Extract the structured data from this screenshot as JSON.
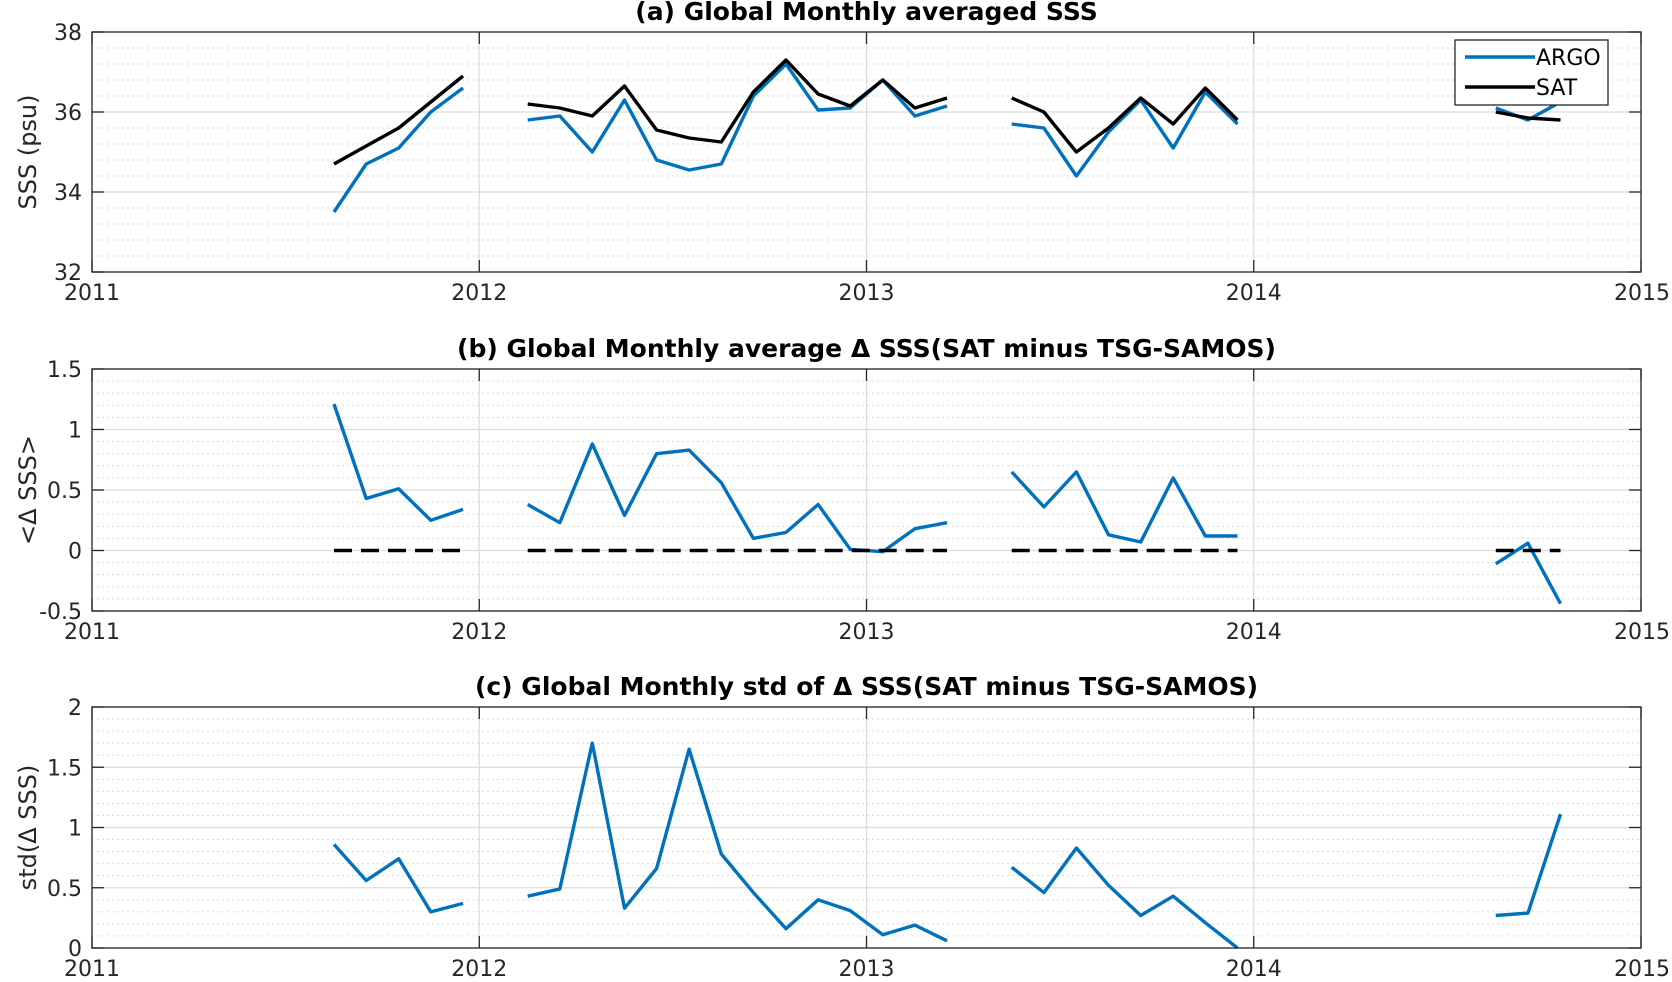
{
  "colors": {
    "argo": "#0072BD",
    "sat": "#000000",
    "zero": "#000000"
  },
  "chart_data": [
    {
      "type": "line",
      "title": "(a) Global Monthly averaged SSS",
      "xlabel": "",
      "ylabel": "SSS (psu)",
      "xlim": [
        2011,
        2015
      ],
      "ylim": [
        32,
        38
      ],
      "xticks": [
        "2011",
        "2012",
        "2013",
        "2014",
        "2015"
      ],
      "yticks": [
        "32",
        "34",
        "36",
        "38"
      ],
      "grid": true,
      "legend": "top-right",
      "series": [
        {
          "name": "ARGO",
          "color": "#0072BD",
          "segments": [
            {
              "x": [
                2011.625,
                2011.708,
                2011.792,
                2011.875,
                2011.958
              ],
              "y": [
                33.5,
                34.7,
                35.1,
                36.0,
                36.6
              ]
            },
            {
              "x": [
                2012.125,
                2012.208,
                2012.292,
                2012.375,
                2012.458,
                2012.542,
                2012.625,
                2012.708,
                2012.792,
                2012.875,
                2012.958,
                2013.042,
                2013.125,
                2013.208
              ],
              "y": [
                35.8,
                35.9,
                35.0,
                36.3,
                34.8,
                34.55,
                34.7,
                36.4,
                37.2,
                36.05,
                36.1,
                36.8,
                35.9,
                36.15
              ]
            },
            {
              "x": [
                2013.375,
                2013.458,
                2013.542,
                2013.625,
                2013.708,
                2013.792,
                2013.875,
                2013.958
              ],
              "y": [
                35.7,
                35.6,
                34.4,
                35.5,
                36.3,
                35.1,
                36.5,
                35.7
              ]
            },
            {
              "x": [
                2014.625,
                2014.708,
                2014.792
              ],
              "y": [
                36.1,
                35.8,
                36.25
              ]
            }
          ]
        },
        {
          "name": "SAT",
          "color": "#000000",
          "segments": [
            {
              "x": [
                2011.625,
                2011.708,
                2011.792,
                2011.875,
                2011.958
              ],
              "y": [
                34.7,
                35.15,
                35.6,
                36.25,
                36.9
              ]
            },
            {
              "x": [
                2012.125,
                2012.208,
                2012.292,
                2012.375,
                2012.458,
                2012.542,
                2012.625,
                2012.708,
                2012.792,
                2012.875,
                2012.958,
                2013.042,
                2013.125,
                2013.208
              ],
              "y": [
                36.2,
                36.1,
                35.9,
                36.65,
                35.55,
                35.35,
                35.25,
                36.5,
                37.3,
                36.45,
                36.15,
                36.8,
                36.1,
                36.35
              ]
            },
            {
              "x": [
                2013.375,
                2013.458,
                2013.542,
                2013.625,
                2013.708,
                2013.792,
                2013.875,
                2013.958
              ],
              "y": [
                36.35,
                36.0,
                35.0,
                35.6,
                36.35,
                35.7,
                36.6,
                35.8
              ]
            },
            {
              "x": [
                2014.625,
                2014.708,
                2014.792
              ],
              "y": [
                36.0,
                35.85,
                35.8
              ]
            }
          ]
        }
      ]
    },
    {
      "type": "line",
      "title": "(b) Global Monthly average Δ SSS(SAT minus TSG-SAMOS)",
      "xlabel": "",
      "ylabel": "<Δ SSS>",
      "xlim": [
        2011,
        2015
      ],
      "ylim": [
        -0.5,
        1.5
      ],
      "xticks": [
        "2011",
        "2012",
        "2013",
        "2014",
        "2015"
      ],
      "yticks": [
        "-0.5",
        "0",
        "0.5",
        "1",
        "1.5"
      ],
      "grid": true,
      "series": [
        {
          "color": "#0072BD",
          "segments": [
            {
              "x": [
                2011.625,
                2011.708,
                2011.792,
                2011.875,
                2011.958
              ],
              "y": [
                1.21,
                0.43,
                0.51,
                0.25,
                0.34
              ]
            },
            {
              "x": [
                2012.125,
                2012.208,
                2012.292,
                2012.375,
                2012.458,
                2012.542,
                2012.625,
                2012.708,
                2012.792,
                2012.875,
                2012.958,
                2013.042,
                2013.125,
                2013.208
              ],
              "y": [
                0.38,
                0.23,
                0.88,
                0.29,
                0.8,
                0.83,
                0.56,
                0.1,
                0.15,
                0.38,
                0.01,
                -0.01,
                0.18,
                0.23
              ]
            },
            {
              "x": [
                2013.375,
                2013.458,
                2013.542,
                2013.625,
                2013.708,
                2013.792,
                2013.875,
                2013.958
              ],
              "y": [
                0.65,
                0.36,
                0.65,
                0.13,
                0.07,
                0.6,
                0.12,
                0.12
              ]
            },
            {
              "x": [
                2014.625,
                2014.708,
                2014.792
              ],
              "y": [
                -0.11,
                0.06,
                -0.44
              ]
            }
          ]
        },
        {
          "color": "#000000",
          "dashed": true,
          "segments": [
            {
              "x": [
                2011.625,
                2011.958
              ],
              "y": [
                0,
                0
              ]
            },
            {
              "x": [
                2012.125,
                2013.208
              ],
              "y": [
                0,
                0
              ]
            },
            {
              "x": [
                2013.375,
                2013.958
              ],
              "y": [
                0,
                0
              ]
            },
            {
              "x": [
                2014.625,
                2014.792
              ],
              "y": [
                0,
                0
              ]
            }
          ]
        }
      ]
    },
    {
      "type": "line",
      "title": "(c) Global Monthly std of Δ SSS(SAT minus TSG-SAMOS)",
      "xlabel": "",
      "ylabel": "std(Δ SSS)",
      "xlim": [
        2011,
        2015
      ],
      "ylim": [
        0,
        2
      ],
      "xticks": [
        "2011",
        "2012",
        "2013",
        "2014",
        "2015"
      ],
      "yticks": [
        "0",
        "0.5",
        "1",
        "1.5",
        "2"
      ],
      "grid": true,
      "series": [
        {
          "color": "#0072BD",
          "segments": [
            {
              "x": [
                2011.625,
                2011.708,
                2011.792,
                2011.875,
                2011.958
              ],
              "y": [
                0.86,
                0.56,
                0.74,
                0.3,
                0.37
              ]
            },
            {
              "x": [
                2012.125,
                2012.208,
                2012.292,
                2012.375,
                2012.458,
                2012.542,
                2012.625,
                2012.708,
                2012.792,
                2012.875,
                2012.958,
                2013.042,
                2013.125,
                2013.208
              ],
              "y": [
                0.43,
                0.49,
                1.7,
                0.33,
                0.66,
                1.65,
                0.78,
                0.46,
                0.16,
                0.4,
                0.31,
                0.11,
                0.19,
                0.06
              ]
            },
            {
              "x": [
                2013.375,
                2013.458,
                2013.542,
                2013.625,
                2013.708,
                2013.792,
                2013.875,
                2013.958
              ],
              "y": [
                0.67,
                0.46,
                0.83,
                0.52,
                0.27,
                0.43,
                0.21,
                0.0
              ]
            },
            {
              "x": [
                2014.625,
                2014.708,
                2014.792
              ],
              "y": [
                0.27,
                0.29,
                1.11
              ]
            }
          ]
        }
      ]
    }
  ]
}
